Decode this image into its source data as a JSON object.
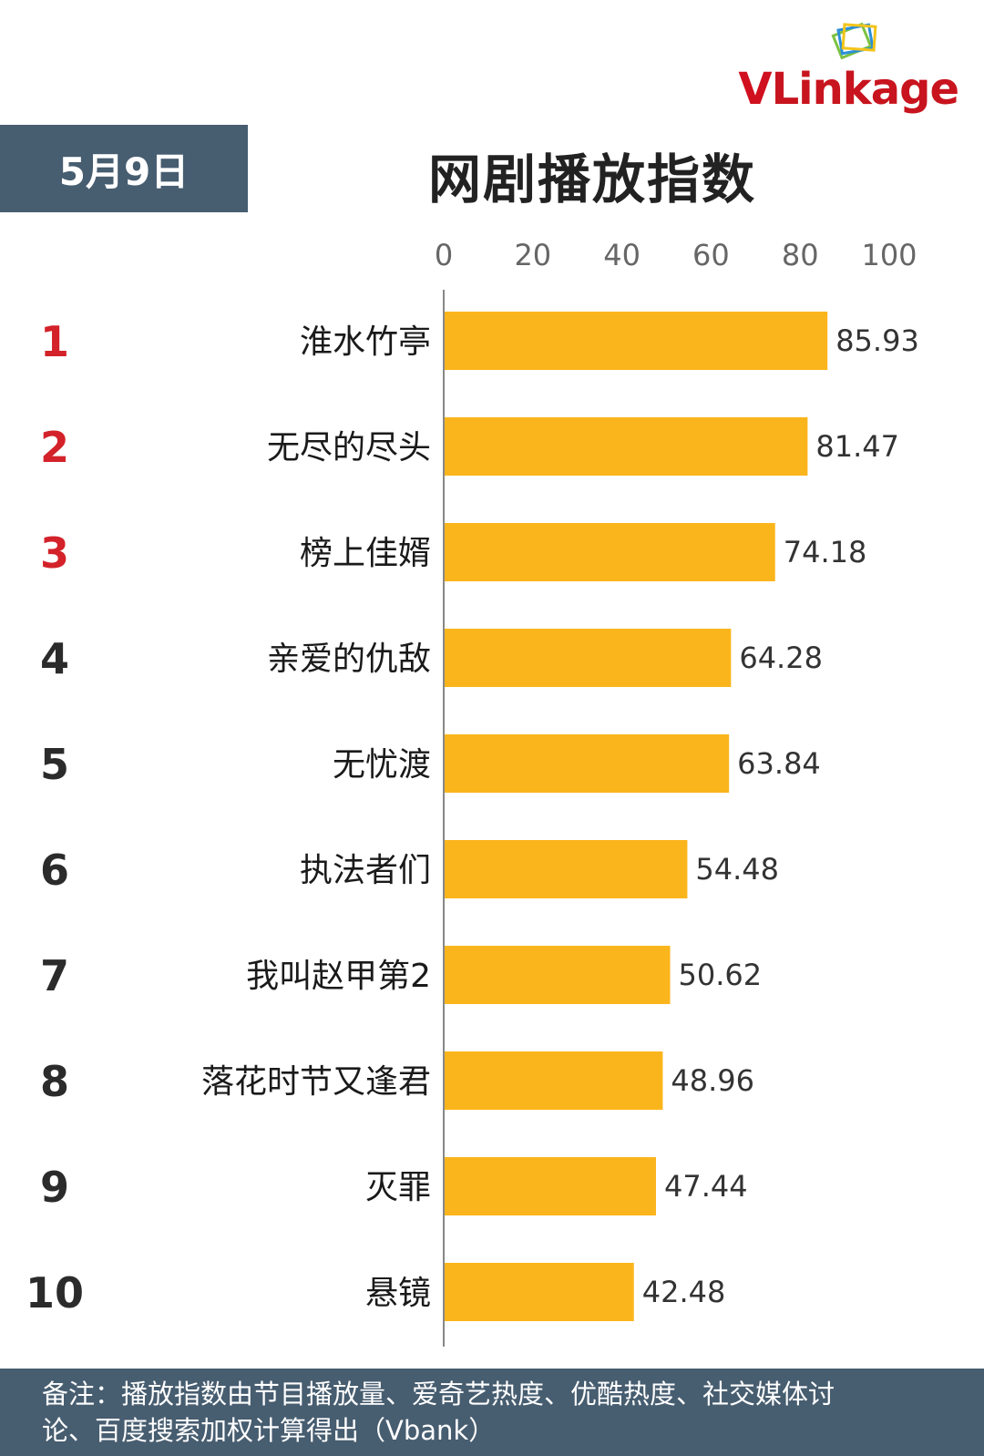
{
  "logo": {
    "text_v": "V",
    "text_rest": "Linkage"
  },
  "date": "5月9日",
  "title": "网剧播放指数",
  "colors": {
    "bar": "#fbb51c",
    "header_bg": "#475d70",
    "rank_top": "#d3222a",
    "rank_other": "#2b2b2b"
  },
  "chart_data": {
    "type": "bar",
    "orientation": "horizontal",
    "title": "网剧播放指数",
    "xlim": [
      0,
      100
    ],
    "ticks": [
      "0",
      "20",
      "40",
      "60",
      "80",
      "100"
    ],
    "ranks": [
      "1",
      "2",
      "3",
      "4",
      "5",
      "6",
      "7",
      "8",
      "9",
      "10"
    ],
    "categories": [
      "淮水竹亭",
      "无尽的尽头",
      "榜上佳婿",
      "亲爱的仇敌",
      "无忧渡",
      "执法者们",
      "我叫赵甲第2",
      "落花时节又逢君",
      "灭罪",
      "悬镜"
    ],
    "values": [
      85.93,
      81.47,
      74.18,
      64.28,
      63.84,
      54.48,
      50.62,
      48.96,
      47.44,
      42.48
    ],
    "value_labels": [
      "85.93",
      "81.47",
      "74.18",
      "64.28",
      "63.84",
      "54.48",
      "50.62",
      "48.96",
      "47.44",
      "42.48"
    ],
    "grid": false
  },
  "footer": {
    "line1": "备注：播放指数由节目播放量、爱奇艺热度、优酷热度、社交媒体讨",
    "line2": "论、百度搜索加权计算得出（Vbank）"
  }
}
